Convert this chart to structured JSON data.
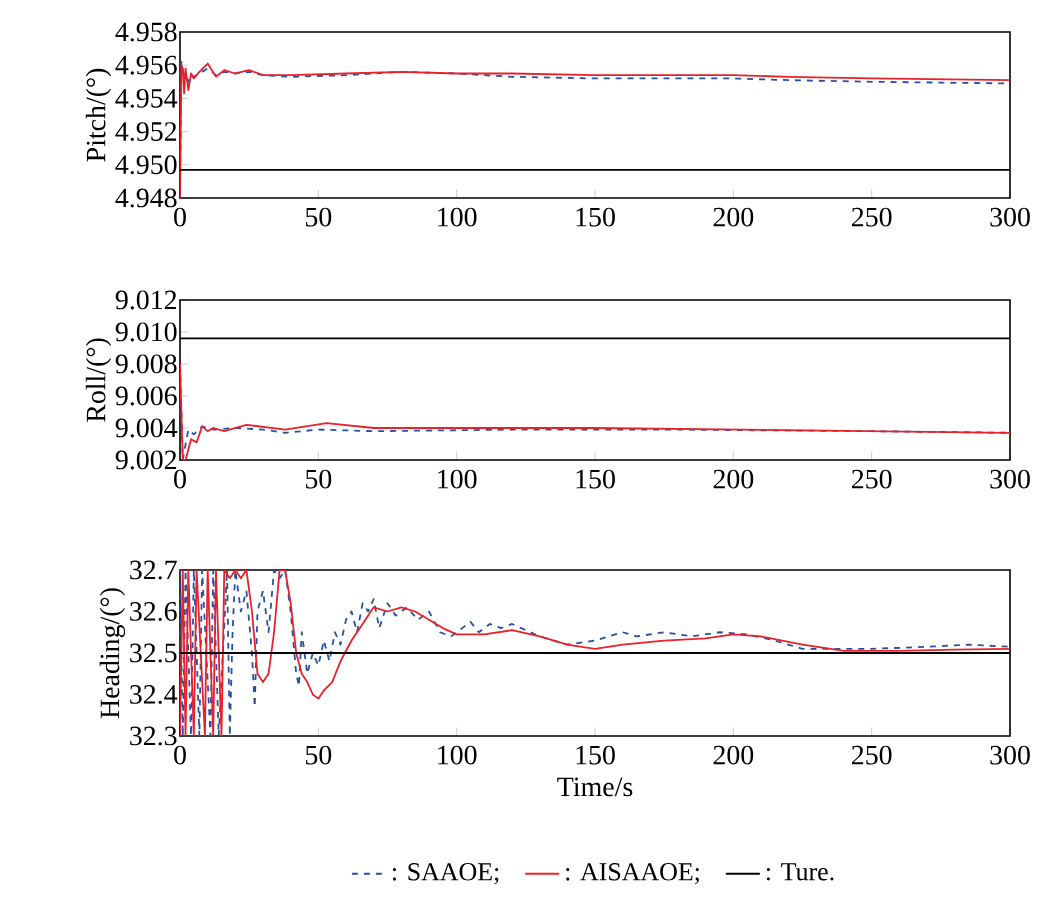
{
  "chart_data": [
    {
      "type": "line",
      "ylabel": "Pitch/(°)",
      "xlim": [
        0,
        300
      ],
      "ylim": [
        4.948,
        4.958
      ],
      "xticks": [
        0,
        50,
        100,
        150,
        200,
        250,
        300
      ],
      "yticks": [
        4.948,
        {
          "value": 4.95,
          "label": "4.950"
        },
        4.952,
        4.954,
        4.956,
        4.958
      ],
      "marker": "none",
      "legend": false,
      "series": [
        {
          "color": "#2850a0",
          "line_style": "dashed",
          "x": [
            0,
            0.5,
            1,
            1.5,
            2,
            3,
            4,
            5,
            7,
            10,
            13,
            16,
            20,
            25,
            30,
            40,
            60,
            80,
            100,
            120,
            150,
            200,
            220,
            250,
            300
          ],
          "values": [
            4.948,
            4.9562,
            4.9557,
            4.9548,
            4.9556,
            4.955,
            4.9554,
            4.9553,
            4.9555,
            4.9558,
            4.9554,
            4.9556,
            4.9555,
            4.9556,
            4.9554,
            4.9553,
            4.9554,
            4.9556,
            4.9555,
            4.9553,
            4.9552,
            4.9552,
            4.9551,
            4.955,
            4.9549
          ]
        },
        {
          "color": "#e8212a",
          "line_style": "solid",
          "x": [
            0,
            0.5,
            1,
            1.5,
            2,
            3,
            4,
            5,
            7,
            10,
            13,
            16,
            20,
            25,
            30,
            40,
            60,
            80,
            100,
            120,
            150,
            200,
            220,
            250,
            300
          ],
          "values": [
            4.948,
            4.956,
            4.9558,
            4.9543,
            4.9558,
            4.9545,
            4.9555,
            4.9552,
            4.9556,
            4.9561,
            4.9553,
            4.9557,
            4.9555,
            4.9557,
            4.9554,
            4.9554,
            4.9555,
            4.9556,
            4.9555,
            4.9555,
            4.9554,
            4.9554,
            4.9553,
            4.9552,
            4.9551
          ]
        },
        {
          "color": "#000000",
          "line_style": "solid",
          "x": [
            0,
            300
          ],
          "values": [
            4.9497,
            4.9497
          ]
        }
      ]
    },
    {
      "type": "line",
      "ylabel": "Roll/(°)",
      "xlim": [
        0,
        300
      ],
      "ylim": [
        9.002,
        9.012
      ],
      "xticks": [
        0,
        50,
        100,
        150,
        200,
        250,
        300
      ],
      "yticks": [
        9.002,
        9.004,
        9.006,
        9.008,
        {
          "value": 9.01,
          "label": "9.010"
        },
        9.012
      ],
      "marker": "none",
      "legend": false,
      "series": [
        {
          "color": "#2850a0",
          "line_style": "dashed",
          "x": [
            0,
            1,
            3,
            5,
            8,
            12,
            20,
            30,
            38,
            50,
            70,
            120,
            180,
            250,
            300
          ],
          "values": [
            9.008,
            9.002,
            9.0039,
            9.0036,
            9.0041,
            9.0039,
            9.004,
            9.0039,
            9.0037,
            9.0039,
            9.0038,
            9.0039,
            9.0039,
            9.0038,
            9.0037
          ]
        },
        {
          "color": "#e8212a",
          "line_style": "solid",
          "x": [
            0,
            1,
            2,
            4,
            6,
            8,
            10,
            12,
            16,
            24,
            38,
            53,
            70,
            150,
            200,
            250,
            300
          ],
          "values": [
            9.008,
            9.002,
            9.002,
            9.0033,
            9.0031,
            9.0041,
            9.0038,
            9.004,
            9.0038,
            9.0042,
            9.0039,
            9.0043,
            9.004,
            9.004,
            9.0039,
            9.0038,
            9.0037
          ]
        },
        {
          "color": "#000000",
          "line_style": "solid",
          "x": [
            0,
            300
          ],
          "values": [
            9.0096,
            9.0096
          ]
        }
      ]
    },
    {
      "type": "line",
      "ylabel": "Heading/(°)",
      "xlabel": "Time/s",
      "xlim": [
        0,
        300
      ],
      "ylim": [
        32.3,
        32.7
      ],
      "xticks": [
        0,
        50,
        100,
        150,
        200,
        250,
        300
      ],
      "yticks": [
        32.3,
        32.4,
        32.5,
        32.6,
        32.7
      ],
      "marker": "none",
      "legend": "bottom",
      "series": [
        {
          "name": ": SAAOE;",
          "color": "#2850a0",
          "line_style": "dashed",
          "x": [
            0,
            1,
            2,
            4,
            5,
            7,
            8,
            11,
            12,
            14,
            17,
            18,
            19,
            20,
            22,
            24,
            26,
            27,
            28,
            30,
            32,
            34,
            36,
            38,
            40,
            42,
            43,
            44,
            46,
            48,
            50,
            52,
            54,
            56,
            58,
            60,
            62,
            64,
            66,
            68,
            70,
            72,
            75,
            78,
            82,
            86,
            90,
            94,
            98,
            102,
            105,
            108,
            112,
            116,
            120,
            125,
            130,
            135,
            140,
            150,
            160,
            165,
            175,
            185,
            195,
            205,
            215,
            225,
            240,
            250,
            270,
            285,
            300
          ],
          "values": [
            32.7,
            32.3,
            32.7,
            32.3,
            32.7,
            32.3,
            32.7,
            32.3,
            32.7,
            32.3,
            32.7,
            32.3,
            32.55,
            32.7,
            32.6,
            32.65,
            32.5,
            32.37,
            32.6,
            32.65,
            32.55,
            32.7,
            32.68,
            32.7,
            32.6,
            32.45,
            32.42,
            32.55,
            32.45,
            32.5,
            32.47,
            32.53,
            32.48,
            32.55,
            32.52,
            32.58,
            32.6,
            32.55,
            32.62,
            32.6,
            32.63,
            32.56,
            32.62,
            32.59,
            32.61,
            32.58,
            32.6,
            32.55,
            32.54,
            32.56,
            32.575,
            32.55,
            32.57,
            32.56,
            32.57,
            32.555,
            32.54,
            32.53,
            32.52,
            32.53,
            32.55,
            32.54,
            32.55,
            32.54,
            32.55,
            32.545,
            32.53,
            32.51,
            32.51,
            32.51,
            32.515,
            32.52,
            32.515
          ]
        },
        {
          "name": ": AISAAOE;",
          "color": "#e8212a",
          "line_style": "solid",
          "x": [
            0,
            1,
            2,
            3,
            5,
            6,
            9,
            10,
            12,
            13,
            15,
            16,
            18,
            20,
            22,
            24,
            26,
            28,
            30,
            32,
            34,
            36,
            38,
            40,
            42,
            44,
            46,
            48,
            50,
            52,
            55,
            58,
            62,
            66,
            70,
            75,
            80,
            85,
            90,
            95,
            100,
            110,
            120,
            130,
            140,
            150,
            160,
            175,
            190,
            200,
            210,
            225,
            240,
            260,
            280,
            300
          ],
          "values": [
            32.3,
            32.7,
            32.3,
            32.7,
            32.3,
            32.7,
            32.3,
            32.7,
            32.3,
            32.7,
            32.3,
            32.7,
            32.68,
            32.7,
            32.68,
            32.7,
            32.6,
            32.45,
            32.43,
            32.45,
            32.55,
            32.7,
            32.7,
            32.62,
            32.5,
            32.45,
            32.43,
            32.4,
            32.39,
            32.41,
            32.43,
            32.48,
            32.53,
            32.57,
            32.61,
            32.6,
            32.61,
            32.6,
            32.58,
            32.56,
            32.545,
            32.545,
            32.555,
            32.54,
            32.52,
            32.51,
            32.52,
            32.53,
            32.535,
            32.545,
            32.54,
            32.52,
            32.505,
            32.505,
            32.508,
            32.51
          ]
        },
        {
          "name": ": Ture.",
          "color": "#000000",
          "line_style": "solid",
          "x": [
            0,
            300
          ],
          "values": [
            32.5,
            32.5
          ]
        }
      ]
    }
  ]
}
